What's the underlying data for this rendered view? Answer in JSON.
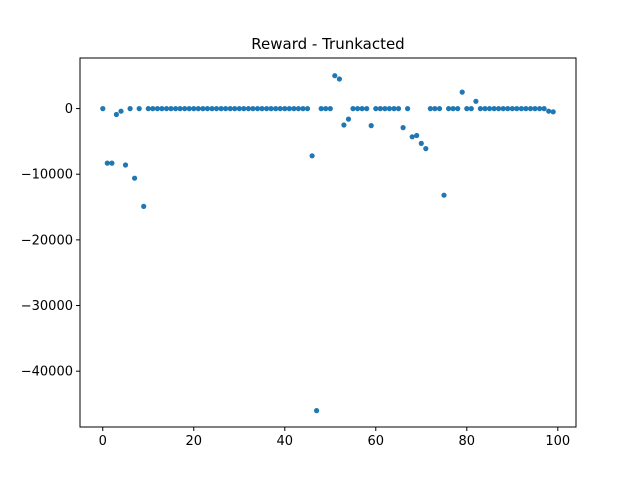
{
  "chart_data": {
    "type": "scatter",
    "title": "Reward - Trunkacted",
    "xlabel": "",
    "ylabel": "",
    "xlim": [
      -5,
      104
    ],
    "ylim": [
      -48500,
      7700
    ],
    "xticks": [
      0,
      20,
      40,
      60,
      80,
      100
    ],
    "yticks": [
      0,
      -10000,
      -20000,
      -30000,
      -40000
    ],
    "xtick_labels": [
      "0",
      "20",
      "40",
      "60",
      "80",
      "100"
    ],
    "ytick_labels": [
      "0",
      "−10000",
      "−20000",
      "−30000",
      "−40000"
    ],
    "grid": false,
    "marker_color": "#1f77b4",
    "series": [
      {
        "x": [
          0,
          1,
          2,
          3,
          4,
          5,
          6,
          7,
          8,
          9,
          10,
          11,
          12,
          13,
          14,
          15,
          16,
          17,
          18,
          19,
          20,
          21,
          22,
          23,
          24,
          25,
          26,
          27,
          28,
          29,
          30,
          31,
          32,
          33,
          34,
          35,
          36,
          37,
          38,
          39,
          40,
          41,
          42,
          43,
          44,
          45,
          46,
          47,
          48,
          49,
          50,
          51,
          52,
          53,
          54,
          55,
          56,
          57,
          58,
          59,
          60,
          61,
          62,
          63,
          64,
          65,
          66,
          67,
          68,
          69,
          70,
          71,
          72,
          73,
          74,
          75,
          76,
          77,
          78,
          79,
          80,
          81,
          82,
          83,
          84,
          85,
          86,
          87,
          88,
          89,
          90,
          91,
          92,
          93,
          94,
          95,
          96,
          97,
          98,
          99
        ],
        "y": [
          0,
          -8300,
          -8300,
          -900,
          -400,
          -8600,
          0,
          -10600,
          0,
          -14900,
          0,
          0,
          0,
          0,
          0,
          0,
          0,
          0,
          0,
          0,
          0,
          0,
          0,
          0,
          0,
          0,
          0,
          0,
          0,
          0,
          0,
          0,
          0,
          0,
          0,
          0,
          0,
          0,
          0,
          0,
          0,
          0,
          0,
          0,
          0,
          0,
          -7200,
          -46000,
          0,
          0,
          0,
          5000,
          4500,
          -2500,
          -1600,
          0,
          0,
          0,
          0,
          -2600,
          0,
          0,
          0,
          0,
          0,
          0,
          -2900,
          0,
          -4300,
          -4100,
          -5300,
          -6100,
          0,
          0,
          0,
          -13200,
          0,
          0,
          0,
          2500,
          0,
          0,
          1100,
          0,
          0,
          0,
          0,
          0,
          0,
          0,
          0,
          0,
          0,
          0,
          0,
          0,
          0,
          0,
          -400,
          -500
        ]
      }
    ]
  }
}
